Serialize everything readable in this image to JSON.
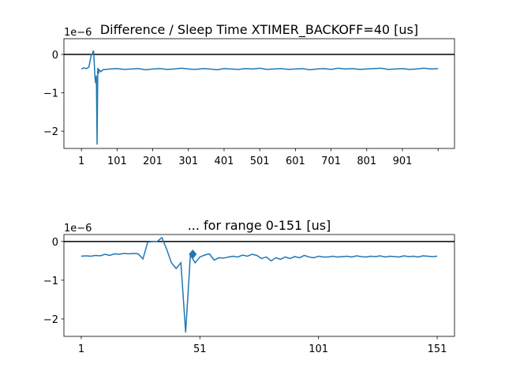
{
  "chart_data": [
    {
      "type": "line",
      "title": "Difference / Sleep Time XTIMER_BACKOFF=40 [us]",
      "y_offset_label": "1e−6",
      "color": "#1f77b4",
      "hline": 0,
      "x": [
        1,
        8,
        15,
        22,
        29,
        31,
        35,
        37,
        39,
        41,
        43,
        45,
        47,
        49,
        51,
        56,
        61,
        81,
        101,
        121,
        141,
        161,
        181,
        201,
        221,
        241,
        261,
        281,
        301,
        321,
        341,
        361,
        381,
        401,
        421,
        441,
        461,
        481,
        501,
        521,
        541,
        561,
        581,
        601,
        621,
        641,
        661,
        681,
        701,
        721,
        741,
        761,
        781,
        801,
        821,
        841,
        861,
        881,
        901,
        921,
        941,
        961,
        981,
        1001
      ],
      "values": [
        -0.38,
        -0.35,
        -0.37,
        -0.33,
        0.0,
        0.0,
        0.1,
        -0.2,
        -0.6,
        -0.75,
        -0.55,
        -2.35,
        -0.35,
        -0.5,
        -0.4,
        -0.45,
        -0.4,
        -0.38,
        -0.37,
        -0.39,
        -0.38,
        -0.37,
        -0.4,
        -0.38,
        -0.37,
        -0.39,
        -0.38,
        -0.36,
        -0.38,
        -0.39,
        -0.37,
        -0.38,
        -0.4,
        -0.37,
        -0.38,
        -0.39,
        -0.37,
        -0.38,
        -0.36,
        -0.39,
        -0.38,
        -0.37,
        -0.39,
        -0.38,
        -0.37,
        -0.4,
        -0.38,
        -0.37,
        -0.39,
        -0.36,
        -0.38,
        -0.37,
        -0.39,
        -0.38,
        -0.37,
        -0.36,
        -0.39,
        -0.38,
        -0.37,
        -0.39,
        -0.38,
        -0.36,
        -0.38,
        -0.37
      ],
      "xlim": [
        -48,
        1047
      ],
      "ylim": [
        -2.45,
        0.41
      ],
      "xticks": [
        1,
        101,
        201,
        301,
        401,
        501,
        601,
        701,
        801,
        901,
        {
          "value": 1001,
          "label": null
        }
      ],
      "yticks": [
        {
          "value": 0,
          "label": "0"
        },
        {
          "value": -1,
          "label": "−1"
        },
        {
          "value": -2,
          "label": "−2"
        }
      ]
    },
    {
      "type": "line",
      "title": "... for range 0-151 [us]",
      "y_offset_label": "1e−6",
      "color": "#1f77b4",
      "hline": 0,
      "x": [
        1,
        3,
        5,
        7,
        9,
        11,
        13,
        15,
        17,
        19,
        21,
        23,
        25,
        27,
        29,
        31,
        33,
        35,
        37,
        39,
        41,
        43,
        45,
        47,
        49,
        51,
        53,
        55,
        57,
        59,
        61,
        63,
        65,
        67,
        69,
        71,
        73,
        75,
        77,
        79,
        81,
        83,
        85,
        87,
        89,
        91,
        93,
        95,
        97,
        99,
        101,
        103,
        105,
        107,
        109,
        111,
        113,
        115,
        117,
        119,
        121,
        123,
        125,
        127,
        129,
        131,
        133,
        135,
        137,
        139,
        141,
        143,
        145,
        147,
        149,
        151
      ],
      "values": [
        -0.38,
        -0.37,
        -0.38,
        -0.36,
        -0.37,
        -0.33,
        -0.36,
        -0.32,
        -0.33,
        -0.31,
        -0.32,
        -0.31,
        -0.32,
        -0.45,
        -0.02,
        0.0,
        0.0,
        0.1,
        -0.2,
        -0.55,
        -0.7,
        -0.55,
        -2.35,
        -0.35,
        -0.55,
        -0.4,
        -0.35,
        -0.32,
        -0.48,
        -0.42,
        -0.43,
        -0.4,
        -0.38,
        -0.4,
        -0.35,
        -0.38,
        -0.33,
        -0.36,
        -0.44,
        -0.4,
        -0.5,
        -0.42,
        -0.46,
        -0.4,
        -0.44,
        -0.39,
        -0.42,
        -0.36,
        -0.4,
        -0.42,
        -0.38,
        -0.4,
        -0.4,
        -0.38,
        -0.4,
        -0.39,
        -0.38,
        -0.4,
        -0.37,
        -0.39,
        -0.4,
        -0.38,
        -0.39,
        -0.37,
        -0.4,
        -0.38,
        -0.39,
        -0.4,
        -0.37,
        -0.39,
        -0.38,
        -0.4,
        -0.37,
        -0.38,
        -0.39,
        -0.38
      ],
      "marker": {
        "x": 48,
        "y": -0.33
      },
      "xlim": [
        -6.3,
        158.3
      ],
      "ylim": [
        -2.45,
        0.18
      ],
      "xticks": [
        1,
        51,
        101,
        151
      ],
      "yticks": [
        {
          "value": 0,
          "label": "0"
        },
        {
          "value": -1,
          "label": "−1"
        },
        {
          "value": -2,
          "label": "−2"
        }
      ]
    }
  ]
}
